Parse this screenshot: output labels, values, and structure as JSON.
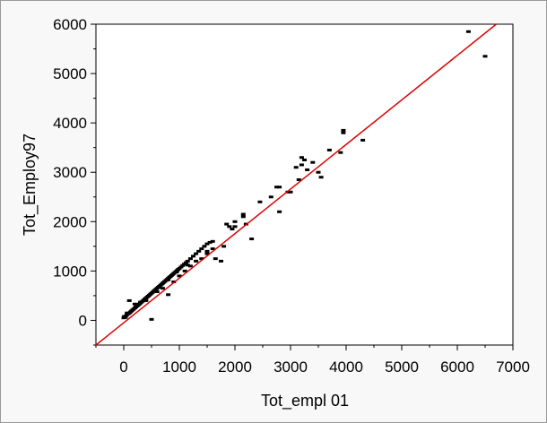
{
  "chart_data": {
    "type": "scatter",
    "xlabel": "Tot_empl 01",
    "ylabel": "Tot_Employ97",
    "xlim": [
      -500,
      7000
    ],
    "ylim": [
      -500,
      6000
    ],
    "x_ticks": [
      0,
      1000,
      2000,
      3000,
      4000,
      5000,
      6000,
      7000
    ],
    "y_ticks": [
      0,
      1000,
      2000,
      3000,
      4000,
      5000,
      6000
    ],
    "x_tick_labels": [
      "0",
      "1000",
      "2000",
      "3000",
      "4000",
      "5000",
      "6000",
      "7000"
    ],
    "y_tick_labels": [
      "0",
      "1000",
      "2000",
      "3000",
      "4000",
      "5000",
      "6000"
    ],
    "grid": false,
    "colors": {
      "points": "#000000",
      "fit_line": "#dd0000"
    },
    "fit_line": {
      "x": [
        -500,
        6700
      ],
      "y": [
        -500,
        6000
      ]
    },
    "points": {
      "x": [
        0,
        10,
        30,
        50,
        60,
        80,
        100,
        120,
        140,
        160,
        180,
        200,
        220,
        240,
        260,
        280,
        300,
        320,
        340,
        360,
        380,
        400,
        420,
        440,
        460,
        480,
        500,
        520,
        540,
        560,
        580,
        600,
        620,
        640,
        660,
        680,
        700,
        720,
        740,
        760,
        780,
        800,
        820,
        840,
        860,
        880,
        900,
        920,
        940,
        960,
        980,
        1000,
        1030,
        1060,
        1090,
        1120,
        1150,
        1200,
        1250,
        1300,
        1350,
        1400,
        1450,
        1500,
        1550,
        1600,
        1400,
        1500,
        1650,
        1800,
        1900,
        1950,
        2000,
        2150,
        2200,
        2450,
        2650,
        2750,
        2800,
        2950,
        3100,
        3150,
        3200,
        3250,
        3300,
        3400,
        3550,
        3700,
        3900,
        3950,
        3950,
        4300,
        6200,
        6500,
        100,
        200,
        300,
        500,
        700,
        800,
        900,
        1000,
        1100,
        1200,
        1300,
        1500,
        1600,
        1750,
        1850,
        2000,
        2150,
        2300,
        2800,
        3000,
        3200,
        3500,
        400,
        600,
        800,
        950,
        1150
      ],
      "y": [
        50,
        80,
        60,
        100,
        150,
        130,
        150,
        170,
        190,
        210,
        230,
        250,
        270,
        290,
        310,
        330,
        350,
        370,
        390,
        410,
        430,
        450,
        470,
        490,
        510,
        530,
        550,
        570,
        590,
        610,
        630,
        650,
        670,
        690,
        710,
        730,
        750,
        770,
        790,
        810,
        830,
        850,
        870,
        890,
        910,
        930,
        950,
        970,
        990,
        1010,
        1030,
        1050,
        1080,
        1110,
        1140,
        1170,
        1200,
        1250,
        1300,
        1350,
        1400,
        1450,
        1500,
        1550,
        1580,
        1600,
        1250,
        1350,
        1250,
        1500,
        1900,
        1850,
        2000,
        2100,
        1950,
        2400,
        2500,
        2700,
        2200,
        2600,
        3100,
        2850,
        3150,
        3250,
        3050,
        3200,
        2900,
        3450,
        3400,
        3800,
        3850,
        3650,
        5850,
        5350,
        400,
        330,
        370,
        20,
        650,
        520,
        780,
        900,
        1000,
        1100,
        1200,
        1400,
        1450,
        1200,
        1950,
        1900,
        2150,
        1650,
        2700,
        2600,
        3300,
        3000,
        400,
        580,
        820,
        980,
        1120
      ]
    }
  }
}
